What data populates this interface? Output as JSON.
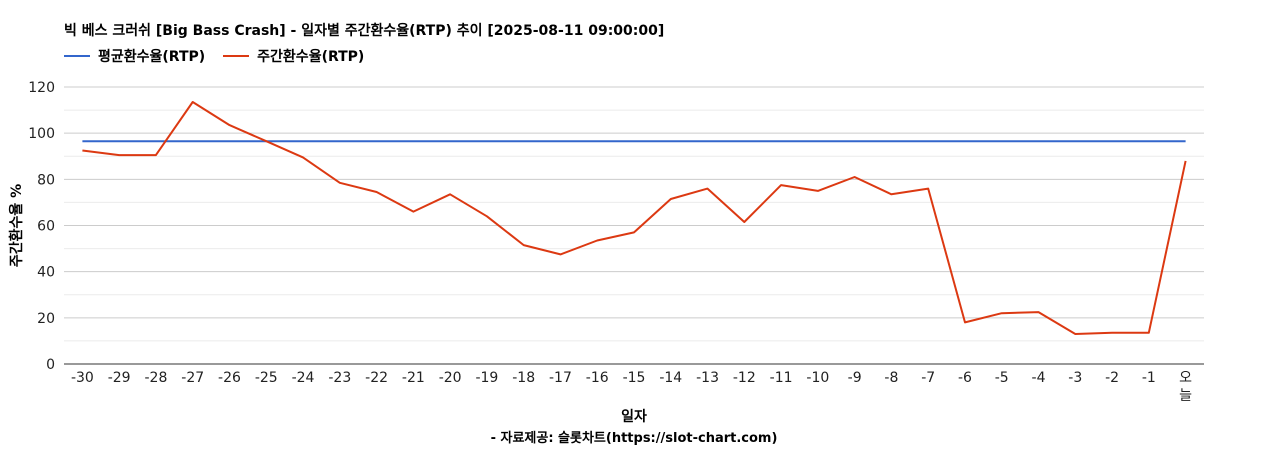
{
  "chart_data": {
    "type": "line",
    "title": "빅 베스 크러쉬 [Big Bass Crash] - 일자별 주간환수율(RTP) 추이 [2025-08-11 09:00:00]",
    "xlabel": "일자",
    "ylabel": "주간환수율 %",
    "footnote": "- 자료제공: 슬롯차트(https://slot-chart.com)",
    "ylim": [
      0,
      120
    ],
    "yticks": [
      0,
      20,
      40,
      60,
      80,
      100,
      120
    ],
    "grid": true,
    "legend_position": "top-left",
    "categories": [
      "-30",
      "-29",
      "-28",
      "-27",
      "-26",
      "-25",
      "-24",
      "-23",
      "-22",
      "-21",
      "-20",
      "-19",
      "-18",
      "-17",
      "-16",
      "-15",
      "-14",
      "-13",
      "-12",
      "-11",
      "-10",
      "-9",
      "-8",
      "-7",
      "-6",
      "-5",
      "-4",
      "-3",
      "-2",
      "-1",
      "오늘"
    ],
    "series": [
      {
        "name": "평균환수율(RTP)",
        "color": "#3366cc",
        "values": [
          96.5,
          96.5,
          96.5,
          96.5,
          96.5,
          96.5,
          96.5,
          96.5,
          96.5,
          96.5,
          96.5,
          96.5,
          96.5,
          96.5,
          96.5,
          96.5,
          96.5,
          96.5,
          96.5,
          96.5,
          96.5,
          96.5,
          96.5,
          96.5,
          96.5,
          96.5,
          96.5,
          96.5,
          96.5,
          96.5,
          96.5
        ]
      },
      {
        "name": "주간환수율(RTP)",
        "color": "#dc3912",
        "values": [
          92.5,
          90.5,
          90.5,
          113.5,
          103.5,
          96.5,
          89.5,
          78.5,
          74.5,
          66.0,
          73.5,
          64.0,
          51.5,
          47.5,
          53.5,
          57.0,
          71.5,
          76.0,
          61.5,
          77.5,
          75.0,
          81.0,
          73.5,
          76.0,
          18.0,
          22.0,
          22.5,
          13.0,
          13.5,
          13.5,
          88.0
        ]
      }
    ]
  }
}
